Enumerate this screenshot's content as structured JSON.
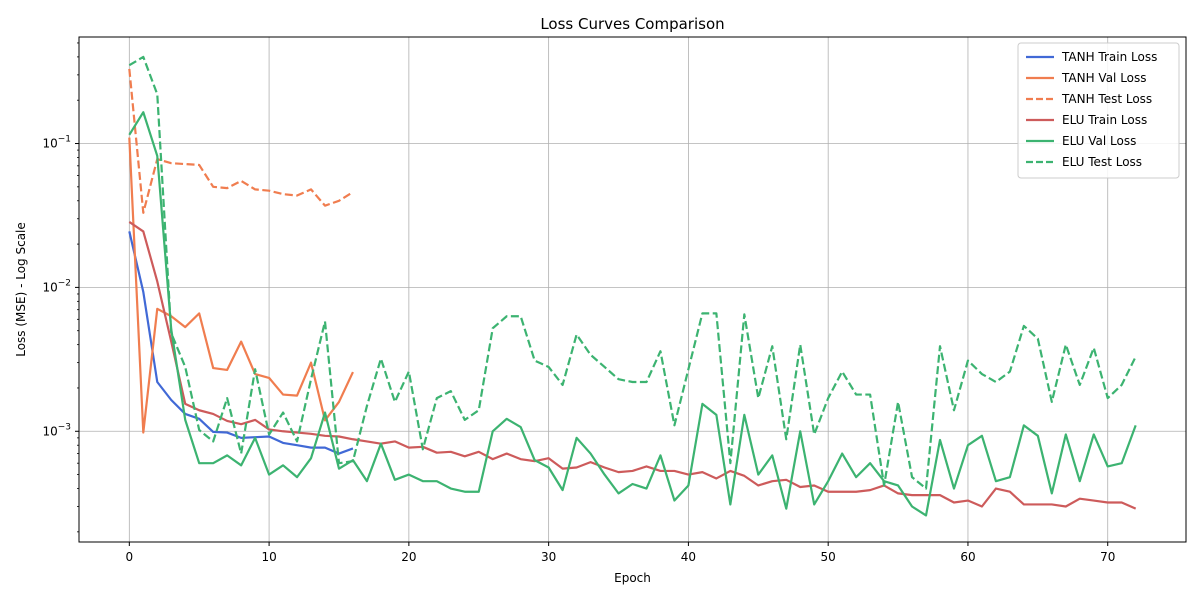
{
  "chart_data": {
    "type": "line",
    "title": "Loss Curves Comparison",
    "xlabel": "Epoch",
    "ylabel": "Loss (MSE) - Log Scale",
    "yscale": "log",
    "xlim": [
      -3.6,
      75.6
    ],
    "ylim": [
      0.00017,
      0.55
    ],
    "x_ticks": [
      0,
      10,
      20,
      30,
      40,
      50,
      60,
      70
    ],
    "x_tick_labels": [
      "0",
      "10",
      "20",
      "30",
      "40",
      "50",
      "60",
      "70"
    ],
    "y_ticks": [
      0.001,
      0.01,
      0.1
    ],
    "y_tick_labels": [
      "10^-3",
      "10^-2",
      "10^-1"
    ],
    "grid": true,
    "legend_position": "top-right",
    "series": [
      {
        "name": "TANH Train Loss",
        "color": "#4169d6",
        "dash": "solid",
        "x_start": 0,
        "values": [
          0.0245,
          0.0093,
          0.0022,
          0.00165,
          0.00132,
          0.00122,
          0.00099,
          0.00098,
          0.0009,
          0.00091,
          0.00092,
          0.00083,
          0.0008,
          0.00077,
          0.00077,
          0.0007,
          0.00076
        ]
      },
      {
        "name": "TANH Val Loss",
        "color": "#f07d4f",
        "dash": "solid",
        "x_start": 0,
        "values": [
          0.11,
          0.00098,
          0.0071,
          0.0063,
          0.0053,
          0.0066,
          0.00275,
          0.00267,
          0.0042,
          0.0025,
          0.00235,
          0.0018,
          0.00177,
          0.003,
          0.00119,
          0.0016,
          0.00258
        ]
      },
      {
        "name": "TANH Test Loss",
        "color": "#f07d4f",
        "dash": "dashed",
        "x_start": 0,
        "values": [
          0.33,
          0.033,
          0.078,
          0.073,
          0.072,
          0.071,
          0.05,
          0.049,
          0.055,
          0.048,
          0.047,
          0.0445,
          0.0435,
          0.048,
          0.037,
          0.04,
          0.046
        ]
      },
      {
        "name": "ELU Train Loss",
        "color": "#cd5b5b",
        "dash": "solid",
        "x_start": 0,
        "values": [
          0.0285,
          0.0245,
          0.011,
          0.0042,
          0.00155,
          0.0014,
          0.00132,
          0.00118,
          0.00112,
          0.0012,
          0.00103,
          0.001,
          0.00098,
          0.00096,
          0.00093,
          0.00092,
          0.00088,
          0.00085,
          0.00082,
          0.00085,
          0.00077,
          0.00078,
          0.00071,
          0.00072,
          0.00067,
          0.00072,
          0.00064,
          0.0007,
          0.00064,
          0.00062,
          0.00065,
          0.00055,
          0.00056,
          0.00061,
          0.00056,
          0.00052,
          0.00053,
          0.00057,
          0.00053,
          0.00053,
          0.0005,
          0.00052,
          0.00047,
          0.00053,
          0.00049,
          0.00042,
          0.00045,
          0.00046,
          0.00041,
          0.00042,
          0.00038,
          0.00038,
          0.00038,
          0.00039,
          0.00042,
          0.00037,
          0.00036,
          0.00036,
          0.00036,
          0.00032,
          0.00033,
          0.0003,
          0.0004,
          0.00038,
          0.00031,
          0.00031,
          0.00031,
          0.0003,
          0.00034,
          0.00033,
          0.00032,
          0.00032,
          0.00029
        ]
      },
      {
        "name": "ELU Val Loss",
        "color": "#3cb371",
        "dash": "solid",
        "x_start": 0,
        "values": [
          0.115,
          0.165,
          0.082,
          0.0051,
          0.0012,
          0.0006,
          0.0006,
          0.00068,
          0.00058,
          0.0009,
          0.0005,
          0.00058,
          0.00048,
          0.00065,
          0.00135,
          0.00055,
          0.00063,
          0.00045,
          0.00082,
          0.00046,
          0.0005,
          0.00045,
          0.00045,
          0.0004,
          0.00038,
          0.00038,
          0.001,
          0.00122,
          0.00107,
          0.00063,
          0.00056,
          0.00039,
          0.0009,
          0.0007,
          0.0005,
          0.00037,
          0.00043,
          0.0004,
          0.00068,
          0.00033,
          0.00042,
          0.00155,
          0.0013,
          0.00031,
          0.0013,
          0.0005,
          0.00068,
          0.00029,
          0.001,
          0.00031,
          0.00045,
          0.0007,
          0.00048,
          0.0006,
          0.00045,
          0.00042,
          0.0003,
          0.00026,
          0.00087,
          0.0004,
          0.0008,
          0.00093,
          0.00045,
          0.00048,
          0.0011,
          0.00093,
          0.00037,
          0.00095,
          0.00045,
          0.00095,
          0.00057,
          0.0006,
          0.0011
        ]
      },
      {
        "name": "ELU Test Loss",
        "color": "#3cb371",
        "dash": "dashed",
        "x_start": 0,
        "values": [
          0.35,
          0.4,
          0.22,
          0.0048,
          0.0028,
          0.00102,
          0.00085,
          0.0017,
          0.0007,
          0.0027,
          0.00095,
          0.00135,
          0.00085,
          0.0023,
          0.0058,
          0.0006,
          0.00062,
          0.0015,
          0.0032,
          0.0016,
          0.0026,
          0.00075,
          0.0017,
          0.0019,
          0.0012,
          0.0014,
          0.0052,
          0.0063,
          0.0063,
          0.0031,
          0.0028,
          0.0021,
          0.0047,
          0.0034,
          0.0028,
          0.0023,
          0.0022,
          0.0022,
          0.0036,
          0.0011,
          0.0027,
          0.0066,
          0.0066,
          0.0006,
          0.0065,
          0.0017,
          0.0039,
          0.00088,
          0.004,
          0.00095,
          0.0017,
          0.0026,
          0.0018,
          0.0018,
          0.00042,
          0.0016,
          0.00048,
          0.0004,
          0.0039,
          0.0014,
          0.0031,
          0.0025,
          0.0022,
          0.0026,
          0.0054,
          0.0044,
          0.0016,
          0.004,
          0.0021,
          0.0038,
          0.0017,
          0.0021,
          0.0033
        ]
      }
    ]
  }
}
